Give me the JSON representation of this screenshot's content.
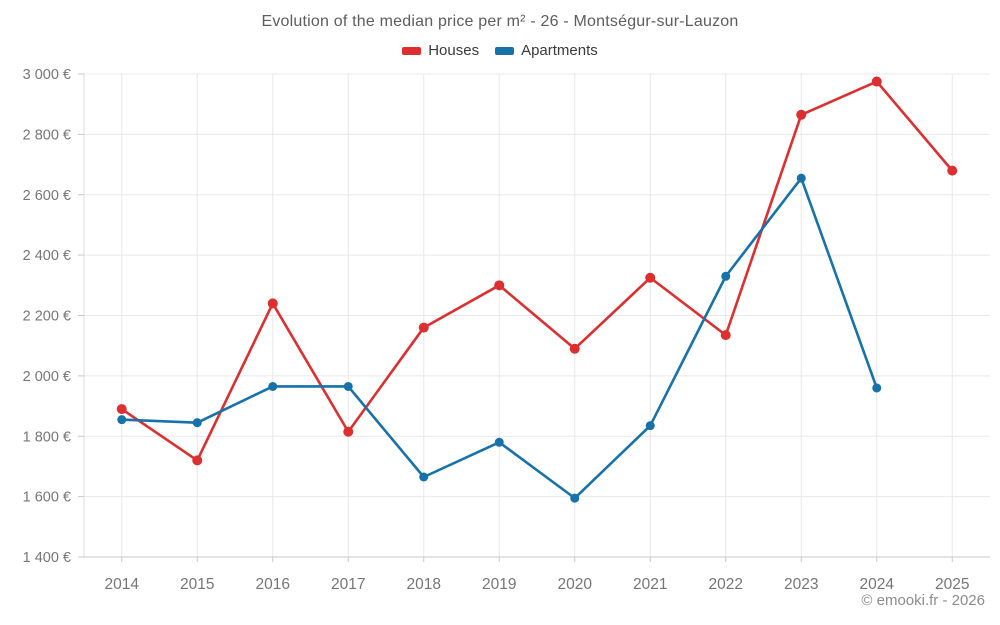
{
  "title": "Evolution of the median price per m² - 26 - Montségur-sur-Lauzon",
  "footer": "© emooki.fr - 2026",
  "chart_data": {
    "type": "line",
    "title": "Evolution of the median price per m² - 26 - Montségur-sur-Lauzon",
    "categories": [
      "2014",
      "2015",
      "2016",
      "2017",
      "2018",
      "2019",
      "2020",
      "2021",
      "2022",
      "2023",
      "2024",
      "2025"
    ],
    "series": [
      {
        "name": "Houses",
        "color": "#dd2f2f",
        "marker_radius": 5,
        "values": [
          1890,
          1720,
          2240,
          1815,
          2160,
          2300,
          2090,
          2325,
          2135,
          2865,
          2975,
          2680
        ]
      },
      {
        "name": "Apartments",
        "color": "#1672a8",
        "marker_radius": 4.5,
        "values": [
          1855,
          1845,
          1965,
          1965,
          1665,
          1780,
          1595,
          1835,
          2330,
          2655,
          1960,
          null
        ]
      }
    ],
    "xlabel": "",
    "ylabel": "",
    "ylim": [
      1400,
      3000
    ],
    "ytick_step": 200,
    "ytick_labels": [
      "1 400 €",
      "1 600 €",
      "1 800 €",
      "2 000 €",
      "2 200 €",
      "2 400 €",
      "2 600 €",
      "2 800 €",
      "3 000 €"
    ],
    "grid": true,
    "legend_position": "top",
    "colors": {
      "grid_line": "#e8e8e8",
      "axis_line": "#c9c9c9",
      "tick_label": "#767676"
    }
  }
}
